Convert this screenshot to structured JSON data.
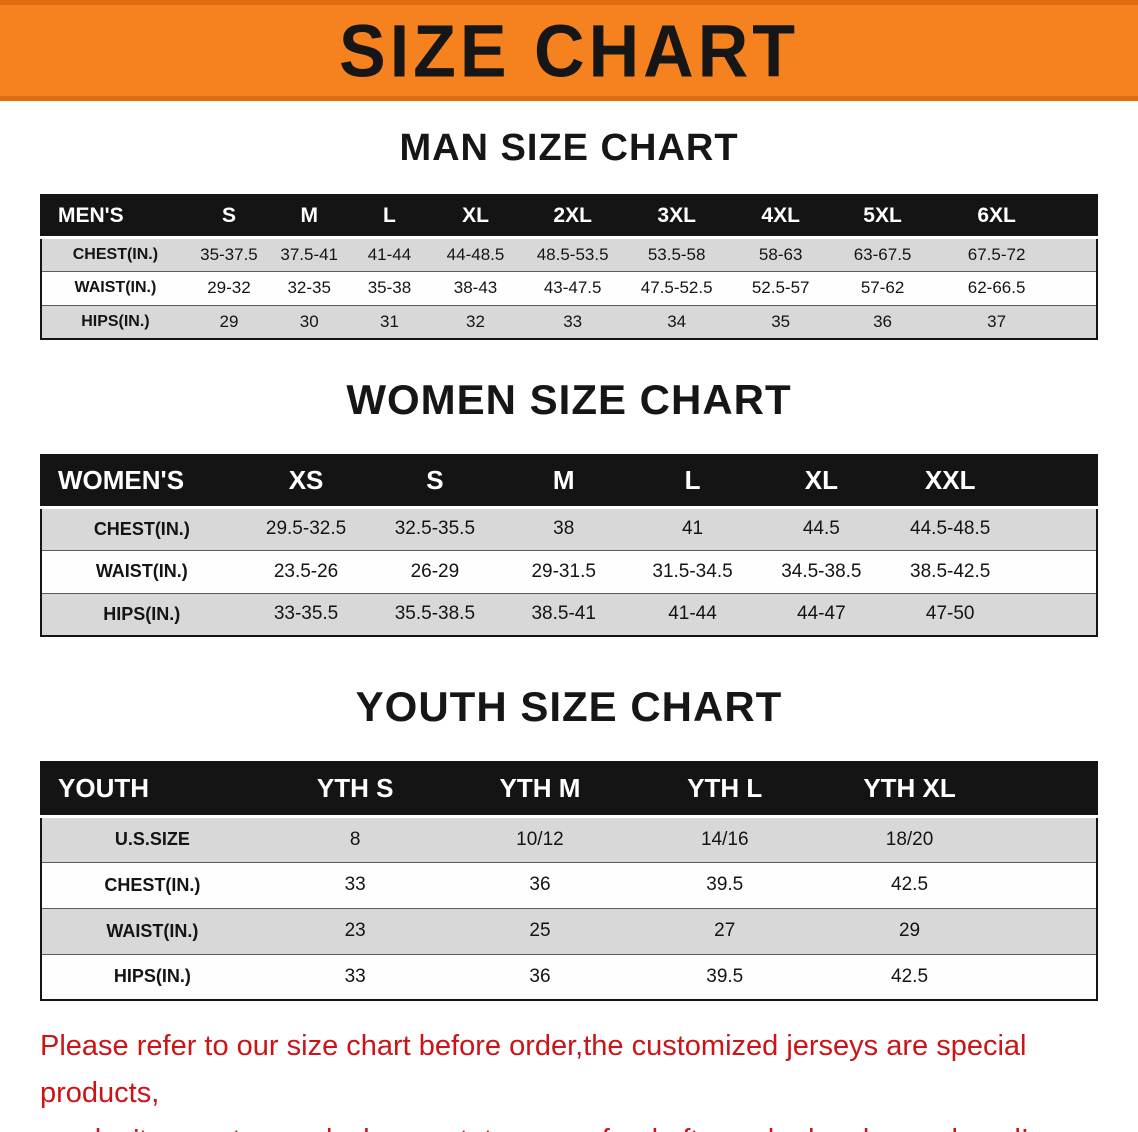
{
  "banner": {
    "title": "SIZE CHART",
    "bg_color": "#f5821f"
  },
  "sections": [
    {
      "heading": "MAN SIZE CHART",
      "table": {
        "header": [
          "MEN'S",
          "S",
          "M",
          "L",
          "XL",
          "2XL",
          "3XL",
          "4XL",
          "5XL",
          "6XL"
        ],
        "rows": [
          {
            "label": "CHEST(IN.)",
            "values": [
              "35-37.5",
              "37.5-41",
              "41-44",
              "44-48.5",
              "48.5-53.5",
              "53.5-58",
              "58-63",
              "63-67.5",
              "67.5-72"
            ]
          },
          {
            "label": "WAIST(IN.)",
            "values": [
              "29-32",
              "32-35",
              "35-38",
              "38-43",
              "43-47.5",
              "47.5-52.5",
              "52.5-57",
              "57-62",
              "62-66.5"
            ]
          },
          {
            "label": "HIPS(IN.)",
            "values": [
              "29",
              "30",
              "31",
              "32",
              "33",
              "34",
              "35",
              "36",
              "37"
            ]
          }
        ]
      }
    },
    {
      "heading": "WOMEN SIZE CHART",
      "table": {
        "header": [
          "WOMEN'S",
          "XS",
          "S",
          "M",
          "L",
          "XL",
          "XXL"
        ],
        "rows": [
          {
            "label": "CHEST(IN.)",
            "values": [
              "29.5-32.5",
              "32.5-35.5",
              "38",
              "41",
              "44.5",
              "44.5-48.5"
            ]
          },
          {
            "label": "WAIST(IN.)",
            "values": [
              "23.5-26",
              "26-29",
              "29-31.5",
              "31.5-34.5",
              "34.5-38.5",
              "38.5-42.5"
            ]
          },
          {
            "label": "HIPS(IN.)",
            "values": [
              "33-35.5",
              "35.5-38.5",
              "38.5-41",
              "41-44",
              "44-47",
              "47-50"
            ]
          }
        ]
      }
    },
    {
      "heading": "YOUTH SIZE CHART",
      "table": {
        "header": [
          "YOUTH",
          "YTH S",
          "YTH M",
          "YTH L",
          "YTH XL"
        ],
        "rows": [
          {
            "label": "U.S.SIZE",
            "values": [
              "8",
              "10/12",
              "14/16",
              "18/20"
            ]
          },
          {
            "label": "CHEST(IN.)",
            "values": [
              "33",
              "36",
              "39.5",
              "42.5"
            ]
          },
          {
            "label": "WAIST(IN.)",
            "values": [
              "23",
              "25",
              "27",
              "29"
            ]
          },
          {
            "label": "HIPS(IN.)",
            "values": [
              "33",
              "36",
              "39.5",
              "42.5"
            ]
          }
        ]
      }
    }
  ],
  "disclaimer": {
    "line1": "Please refer to our size chart before order,the customized jerseys are special products,",
    "line2": "we don't accept cancel, change, teturn or refund after order has been placed!",
    "color": "#cc1417"
  }
}
